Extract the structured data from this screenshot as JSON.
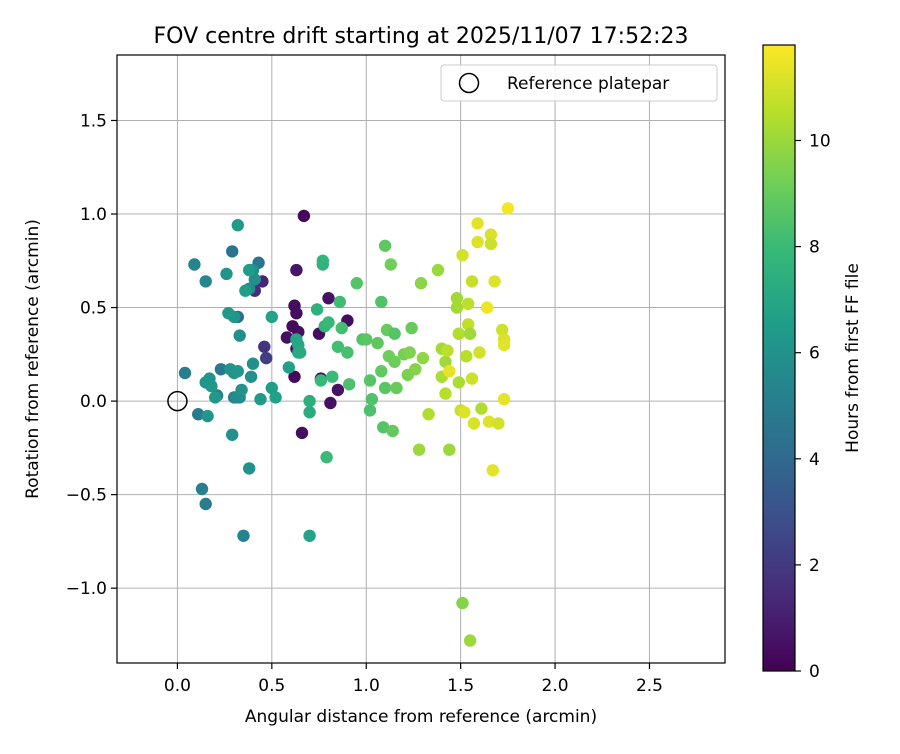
{
  "chart_data": {
    "type": "scatter",
    "title": "FOV centre drift starting at 2025/11/07 17:52:23",
    "xlabel": "Angular distance from reference (arcmin)",
    "ylabel": "Rotation from reference (arcmin)",
    "xlim": [
      -0.32,
      2.9
    ],
    "ylim": [
      -1.4,
      1.85
    ],
    "xticks": [
      0.0,
      0.5,
      1.0,
      1.5,
      2.0,
      2.5
    ],
    "xtick_labels": [
      "0.0",
      "0.5",
      "1.0",
      "1.5",
      "2.0",
      "2.5"
    ],
    "yticks": [
      -1.0,
      -0.5,
      0.0,
      0.5,
      1.0,
      1.5
    ],
    "ytick_labels": [
      "−1.0",
      "−0.5",
      "0.0",
      "0.5",
      "1.0",
      "1.5"
    ],
    "grid": true,
    "legend": {
      "position": "top-right",
      "entries": [
        "Reference platepar"
      ]
    },
    "reference_point": {
      "x": 0.0,
      "y": 0.0,
      "label": "Reference platepar",
      "marker": "open-circle"
    },
    "colorbar": {
      "label": "Hours from first FF file",
      "range": [
        0,
        11.8
      ],
      "ticks": [
        0,
        2,
        4,
        6,
        8,
        10
      ],
      "tick_labels": [
        "0",
        "2",
        "4",
        "6",
        "8",
        "10"
      ],
      "colormap": "viridis",
      "colormap_stops": [
        "#440154",
        "#482878",
        "#3e4989",
        "#31688e",
        "#26828e",
        "#1f9e89",
        "#35b779",
        "#6ece58",
        "#b5de2b",
        "#fde725"
      ]
    },
    "series": [
      {
        "name": "FF file drift",
        "columns": [
          "x",
          "y",
          "hours"
        ],
        "points": [
          [
            0.67,
            0.99,
            0.2
          ],
          [
            0.62,
            0.51,
            0.3
          ],
          [
            0.63,
            0.47,
            0.4
          ],
          [
            0.64,
            0.37,
            0.5
          ],
          [
            0.61,
            0.4,
            0.3
          ],
          [
            0.63,
            0.28,
            0.6
          ],
          [
            0.58,
            0.34,
            0.5
          ],
          [
            0.66,
            -0.17,
            0.4
          ],
          [
            0.62,
            0.13,
            0.3
          ],
          [
            0.75,
            0.36,
            0.4
          ],
          [
            0.76,
            0.12,
            0.5
          ],
          [
            0.8,
            0.55,
            0.6
          ],
          [
            0.81,
            -0.01,
            0.5
          ],
          [
            0.85,
            0.06,
            0.6
          ],
          [
            0.9,
            0.43,
            0.4
          ],
          [
            0.63,
            0.7,
            0.7
          ],
          [
            0.45,
            0.64,
            1.2
          ],
          [
            0.41,
            0.59,
            1.5
          ],
          [
            0.46,
            0.29,
            1.8
          ],
          [
            0.47,
            0.23,
            2.2
          ],
          [
            0.32,
            0.45,
            4.2
          ],
          [
            0.29,
            0.8,
            4.5
          ],
          [
            0.43,
            0.74,
            4.6
          ],
          [
            0.11,
            -0.07,
            4.8
          ],
          [
            0.23,
            0.17,
            4.7
          ],
          [
            0.3,
            0.02,
            5.0
          ],
          [
            0.21,
            0.03,
            5.1
          ],
          [
            0.13,
            -0.47,
            5.2
          ],
          [
            0.15,
            -0.55,
            4.9
          ],
          [
            0.35,
            -0.72,
            5.3
          ],
          [
            0.04,
            0.15,
            5.0
          ],
          [
            0.09,
            0.73,
            5.4
          ],
          [
            0.15,
            0.64,
            5.5
          ],
          [
            0.31,
            0.02,
            5.6
          ],
          [
            0.33,
            0.02,
            5.7
          ],
          [
            0.33,
            0.35,
            5.8
          ],
          [
            0.29,
            -0.18,
            5.9
          ],
          [
            0.38,
            -0.36,
            6.0
          ],
          [
            0.38,
            0.6,
            5.6
          ],
          [
            0.4,
            0.7,
            5.7
          ],
          [
            0.41,
            0.65,
            5.8
          ],
          [
            0.4,
            0.2,
            5.9
          ],
          [
            0.39,
            0.13,
            5.9
          ],
          [
            0.34,
            0.06,
            6.0
          ],
          [
            0.26,
            0.68,
            6.1
          ],
          [
            0.3,
            0.45,
            6.2
          ],
          [
            0.27,
            0.47,
            6.3
          ],
          [
            0.28,
            0.17,
            6.0
          ],
          [
            0.3,
            0.15,
            6.1
          ],
          [
            0.32,
            0.16,
            6.2
          ],
          [
            0.17,
            0.12,
            6.1
          ],
          [
            0.15,
            0.1,
            6.2
          ],
          [
            0.18,
            0.08,
            6.3
          ],
          [
            0.16,
            -0.08,
            6.2
          ],
          [
            0.2,
            0.02,
            6.3
          ],
          [
            0.32,
            0.94,
            6.4
          ],
          [
            0.38,
            0.7,
            6.5
          ],
          [
            0.36,
            0.59,
            6.6
          ],
          [
            0.44,
            0.01,
            6.4
          ],
          [
            0.5,
            0.07,
            6.6
          ],
          [
            0.52,
            0.02,
            6.7
          ],
          [
            0.59,
            0.18,
            6.7
          ],
          [
            0.5,
            0.45,
            6.8
          ],
          [
            0.63,
            0.33,
            6.9
          ],
          [
            0.64,
            0.3,
            7.0
          ],
          [
            0.64,
            0.26,
            7.1
          ],
          [
            0.65,
            0.26,
            7.2
          ],
          [
            0.7,
            -0.72,
            6.8
          ],
          [
            0.7,
            -0.06,
            7.3
          ],
          [
            0.7,
            0.0,
            7.4
          ],
          [
            0.74,
            0.49,
            7.5
          ],
          [
            0.77,
            0.73,
            7.6
          ],
          [
            0.77,
            0.75,
            7.7
          ],
          [
            0.78,
            0.4,
            7.8
          ],
          [
            0.8,
            0.42,
            7.9
          ],
          [
            0.76,
            0.11,
            7.9
          ],
          [
            0.82,
            0.13,
            8.0
          ],
          [
            0.79,
            -0.3,
            8.0
          ],
          [
            0.86,
            0.53,
            8.1
          ],
          [
            0.87,
            0.39,
            8.2
          ],
          [
            0.85,
            0.29,
            8.2
          ],
          [
            0.9,
            0.26,
            8.3
          ],
          [
            0.91,
            0.09,
            8.4
          ],
          [
            0.95,
            0.63,
            8.6
          ],
          [
            0.98,
            0.33,
            8.5
          ],
          [
            1.0,
            0.33,
            8.7
          ],
          [
            1.02,
            0.11,
            8.6
          ],
          [
            1.02,
            -0.05,
            8.4
          ],
          [
            1.03,
            0.01,
            8.5
          ],
          [
            1.06,
            0.31,
            8.8
          ],
          [
            1.08,
            0.53,
            8.5
          ],
          [
            1.08,
            0.16,
            8.9
          ],
          [
            1.09,
            -0.14,
            8.6
          ],
          [
            1.1,
            0.07,
            8.7
          ],
          [
            1.1,
            0.83,
            8.8
          ],
          [
            1.11,
            0.38,
            9.0
          ],
          [
            1.12,
            0.24,
            9.1
          ],
          [
            1.13,
            0.73,
            9.2
          ],
          [
            1.14,
            -0.16,
            8.9
          ],
          [
            1.15,
            0.36,
            8.6
          ],
          [
            1.15,
            0.21,
            9.1
          ],
          [
            1.16,
            0.07,
            9.0
          ],
          [
            1.2,
            0.25,
            9.3
          ],
          [
            1.22,
            0.14,
            9.4
          ],
          [
            1.23,
            0.26,
            9.5
          ],
          [
            1.24,
            0.39,
            9.0
          ],
          [
            1.26,
            0.17,
            9.6
          ],
          [
            1.29,
            0.63,
            9.7
          ],
          [
            1.28,
            -0.26,
            10.0
          ],
          [
            1.3,
            0.23,
            9.8
          ],
          [
            1.33,
            -0.07,
            10.4
          ],
          [
            1.38,
            0.7,
            10.0
          ],
          [
            1.4,
            0.28,
            10.2
          ],
          [
            1.4,
            0.13,
            10.3
          ],
          [
            1.42,
            0.21,
            10.1
          ],
          [
            1.42,
            0.04,
            10.5
          ],
          [
            1.43,
            0.27,
            10.6
          ],
          [
            1.44,
            -0.26,
            10.0
          ],
          [
            1.44,
            0.16,
            11.4
          ],
          [
            1.48,
            0.55,
            10.1
          ],
          [
            1.48,
            0.5,
            10.2
          ],
          [
            1.49,
            0.36,
            10.4
          ],
          [
            1.49,
            0.1,
            10.3
          ],
          [
            1.5,
            -0.05,
            10.8
          ],
          [
            1.51,
            0.78,
            11.0
          ],
          [
            1.51,
            -1.08,
            9.6
          ],
          [
            1.52,
            -0.06,
            11.2
          ],
          [
            1.53,
            0.24,
            10.5
          ],
          [
            1.54,
            0.52,
            10.6
          ],
          [
            1.54,
            0.41,
            10.7
          ],
          [
            1.55,
            0.36,
            10.1
          ],
          [
            1.55,
            -1.28,
            10.0
          ],
          [
            1.56,
            0.64,
            10.8
          ],
          [
            1.56,
            0.12,
            10.9
          ],
          [
            1.57,
            -0.12,
            11.1
          ],
          [
            1.59,
            0.85,
            11.2
          ],
          [
            1.59,
            0.95,
            11.3
          ],
          [
            1.6,
            0.26,
            11.0
          ],
          [
            1.61,
            -0.04,
            10.4
          ],
          [
            1.64,
            0.5,
            11.5
          ],
          [
            1.65,
            -0.11,
            11.2
          ],
          [
            1.66,
            0.89,
            11.1
          ],
          [
            1.66,
            0.84,
            10.9
          ],
          [
            1.67,
            -0.37,
            11.3
          ],
          [
            1.68,
            0.64,
            11.2
          ],
          [
            1.7,
            -0.12,
            11.0
          ],
          [
            1.72,
            0.38,
            10.9
          ],
          [
            1.73,
            0.33,
            11.1
          ],
          [
            1.73,
            0.3,
            11.3
          ],
          [
            1.73,
            0.01,
            11.4
          ],
          [
            1.75,
            1.03,
            11.6
          ]
        ]
      }
    ]
  }
}
